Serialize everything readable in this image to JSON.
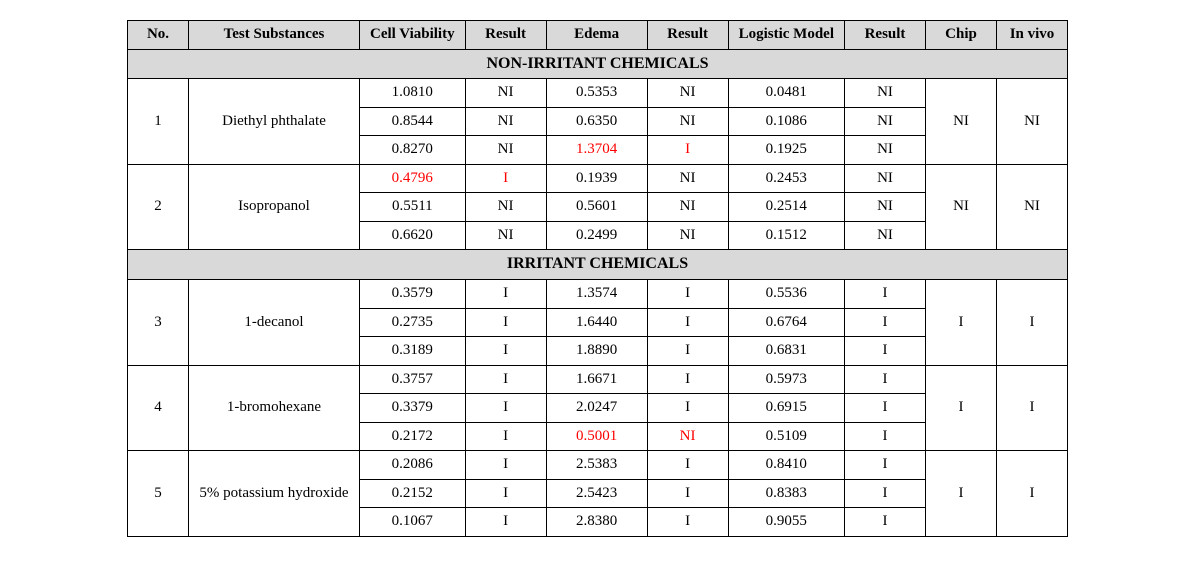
{
  "headers": {
    "no": "No.",
    "substances": "Test Substances",
    "viability": "Cell Viability",
    "result1": "Result",
    "edema": "Edema",
    "result2": "Result",
    "logistic": "Logistic Model",
    "result3": "Result",
    "chip": "Chip",
    "invivo": "In vivo"
  },
  "sections": {
    "nonirritant": "NON-IRRITANT CHEMICALS",
    "irritant": "IRRITANT CHEMICALS"
  },
  "groups": [
    {
      "no": "1",
      "substance": "Diethyl phthalate",
      "chip": "NI",
      "invivo": "NI",
      "rows": [
        {
          "cv": "1.0810",
          "cv_red": false,
          "r1": "NI",
          "r1_red": false,
          "ed": "0.5353",
          "ed_red": false,
          "r2": "NI",
          "r2_red": false,
          "lm": "0.0481",
          "r3": "NI"
        },
        {
          "cv": "0.8544",
          "cv_red": false,
          "r1": "NI",
          "r1_red": false,
          "ed": "0.6350",
          "ed_red": false,
          "r2": "NI",
          "r2_red": false,
          "lm": "0.1086",
          "r3": "NI"
        },
        {
          "cv": "0.8270",
          "cv_red": false,
          "r1": "NI",
          "r1_red": false,
          "ed": "1.3704",
          "ed_red": true,
          "r2": "I",
          "r2_red": true,
          "lm": "0.1925",
          "r3": "NI"
        }
      ]
    },
    {
      "no": "2",
      "substance": "Isopropanol",
      "chip": "NI",
      "invivo": "NI",
      "rows": [
        {
          "cv": "0.4796",
          "cv_red": true,
          "r1": "I",
          "r1_red": true,
          "ed": "0.1939",
          "ed_red": false,
          "r2": "NI",
          "r2_red": false,
          "lm": "0.2453",
          "r3": "NI"
        },
        {
          "cv": "0.5511",
          "cv_red": false,
          "r1": "NI",
          "r1_red": false,
          "ed": "0.5601",
          "ed_red": false,
          "r2": "NI",
          "r2_red": false,
          "lm": "0.2514",
          "r3": "NI"
        },
        {
          "cv": "0.6620",
          "cv_red": false,
          "r1": "NI",
          "r1_red": false,
          "ed": "0.2499",
          "ed_red": false,
          "r2": "NI",
          "r2_red": false,
          "lm": "0.1512",
          "r3": "NI"
        }
      ]
    },
    {
      "no": "3",
      "substance": "1-decanol",
      "chip": "I",
      "invivo": "I",
      "rows": [
        {
          "cv": "0.3579",
          "cv_red": false,
          "r1": "I",
          "r1_red": false,
          "ed": "1.3574",
          "ed_red": false,
          "r2": "I",
          "r2_red": false,
          "lm": "0.5536",
          "r3": "I"
        },
        {
          "cv": "0.2735",
          "cv_red": false,
          "r1": "I",
          "r1_red": false,
          "ed": "1.6440",
          "ed_red": false,
          "r2": "I",
          "r2_red": false,
          "lm": "0.6764",
          "r3": "I"
        },
        {
          "cv": "0.3189",
          "cv_red": false,
          "r1": "I",
          "r1_red": false,
          "ed": "1.8890",
          "ed_red": false,
          "r2": "I",
          "r2_red": false,
          "lm": "0.6831",
          "r3": "I"
        }
      ]
    },
    {
      "no": "4",
      "substance": "1-bromohexane",
      "chip": "I",
      "invivo": "I",
      "rows": [
        {
          "cv": "0.3757",
          "cv_red": false,
          "r1": "I",
          "r1_red": false,
          "ed": "1.6671",
          "ed_red": false,
          "r2": "I",
          "r2_red": false,
          "lm": "0.5973",
          "r3": "I"
        },
        {
          "cv": "0.3379",
          "cv_red": false,
          "r1": "I",
          "r1_red": false,
          "ed": "2.0247",
          "ed_red": false,
          "r2": "I",
          "r2_red": false,
          "lm": "0.6915",
          "r3": "I"
        },
        {
          "cv": "0.2172",
          "cv_red": false,
          "r1": "I",
          "r1_red": false,
          "ed": "0.5001",
          "ed_red": true,
          "r2": "NI",
          "r2_red": true,
          "lm": "0.5109",
          "r3": "I"
        }
      ]
    },
    {
      "no": "5",
      "substance": "5% potassium hydroxide",
      "chip": "I",
      "invivo": "I",
      "rows": [
        {
          "cv": "0.2086",
          "cv_red": false,
          "r1": "I",
          "r1_red": false,
          "ed": "2.5383",
          "ed_red": false,
          "r2": "I",
          "r2_red": false,
          "lm": "0.8410",
          "r3": "I"
        },
        {
          "cv": "0.2152",
          "cv_red": false,
          "r1": "I",
          "r1_red": false,
          "ed": "2.5423",
          "ed_red": false,
          "r2": "I",
          "r2_red": false,
          "lm": "0.8383",
          "r3": "I"
        },
        {
          "cv": "0.1067",
          "cv_red": false,
          "r1": "I",
          "r1_red": false,
          "ed": "2.8380",
          "ed_red": false,
          "r2": "I",
          "r2_red": false,
          "lm": "0.9055",
          "r3": "I"
        }
      ]
    }
  ],
  "style": {
    "header_bg": "#d9d9d9",
    "border_color": "#000000",
    "red_color": "#ff0000",
    "font_family": "Times New Roman",
    "cell_font_size": 15,
    "header_font_size": 15
  }
}
